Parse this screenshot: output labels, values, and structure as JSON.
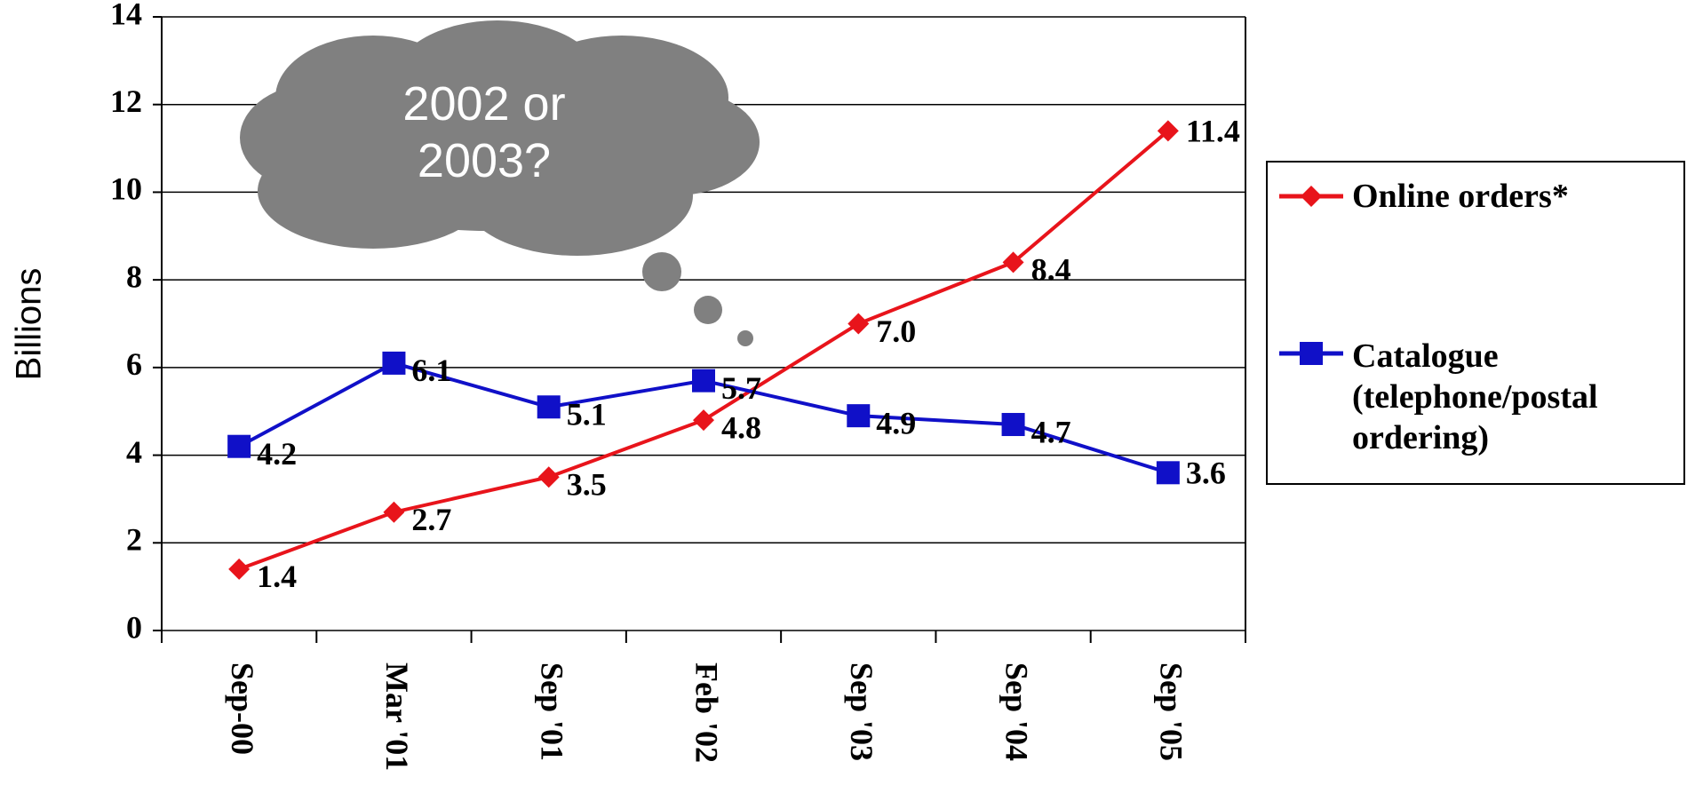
{
  "chart_data": {
    "type": "line",
    "y_label": "Billions",
    "annotation": "2002 or 2003?",
    "categories": [
      "Sep-00",
      "Mar '01",
      "Sep '01",
      "Feb '02",
      "Sep '03",
      "Sep '04",
      "Sep '05"
    ],
    "series": [
      {
        "name": "Online orders*",
        "color": "#e8141b",
        "marker": "diamond",
        "values": [
          1.4,
          2.7,
          3.5,
          4.8,
          7.0,
          8.4,
          11.4
        ],
        "value_labels": [
          "1.4",
          "2.7",
          "3.5",
          "4.8",
          "7.0",
          "8.4",
          "11.4"
        ]
      },
      {
        "name": "Catalogue (telephone/postal ordering)",
        "color": "#1010c8",
        "marker": "square",
        "values": [
          4.2,
          6.1,
          5.1,
          5.7,
          4.9,
          4.7,
          3.6
        ],
        "value_labels": [
          "4.2",
          "6.1",
          "5.1",
          "5.7",
          "4.9",
          "4.7",
          "3.6"
        ]
      }
    ],
    "ylim": [
      0,
      14
    ],
    "yticks": [
      0,
      2,
      4,
      6,
      8,
      10,
      12,
      14
    ],
    "grid": true,
    "legend": "right"
  }
}
